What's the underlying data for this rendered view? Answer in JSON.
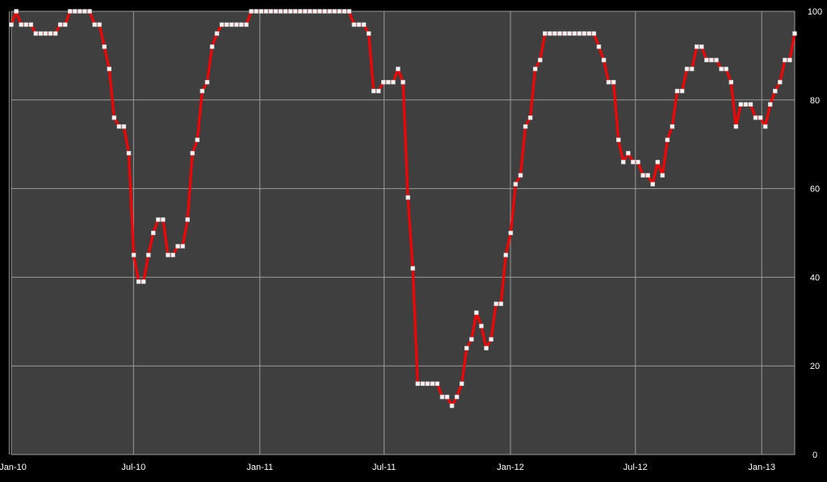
{
  "chart_data": {
    "type": "line",
    "title": "",
    "xlabel": "",
    "ylabel": "",
    "ylim": [
      0,
      100
    ],
    "yticks": [
      "0",
      "20",
      "40",
      "60",
      "80",
      "100"
    ],
    "y_axis_side": "right",
    "xticks": [
      "Jan-10",
      "Jul-10",
      "Jan-11",
      "Jul-11",
      "Jan-12",
      "Jul-12",
      "Jan-13"
    ],
    "x_start": "2010-01-04",
    "x_end": "2013-02-18",
    "grid": true,
    "colors": {
      "plot_bg": "#3f3f3f",
      "outer_bg": "#000000",
      "grid": "#9a9a9a",
      "line": "#ff0000",
      "marker": "#f2f2f2",
      "text": "#ffffff"
    },
    "series": [
      {
        "values": [
          97,
          100,
          97,
          97,
          97,
          95,
          95,
          95,
          95,
          95,
          97,
          97,
          100,
          100,
          100,
          100,
          100,
          97,
          97,
          92,
          87,
          76,
          74,
          74,
          68,
          45,
          39,
          39,
          45,
          50,
          53,
          53,
          45,
          45,
          47,
          47,
          53,
          68,
          71,
          82,
          84,
          92,
          95,
          97,
          97,
          97,
          97,
          97,
          97,
          100,
          100,
          100,
          100,
          100,
          100,
          100,
          100,
          100,
          100,
          100,
          100,
          100,
          100,
          100,
          100,
          100,
          100,
          100,
          100,
          100,
          97,
          97,
          97,
          95,
          82,
          82,
          84,
          84,
          84,
          87,
          84,
          58,
          42,
          16,
          16,
          16,
          16,
          16,
          13,
          13,
          11,
          13,
          16,
          24,
          26,
          32,
          29,
          24,
          26,
          34,
          34,
          45,
          50,
          61,
          63,
          74,
          76,
          87,
          89,
          95,
          95,
          95,
          95,
          95,
          95,
          95,
          95,
          95,
          95,
          95,
          92,
          89,
          84,
          84,
          71,
          66,
          68,
          66,
          66,
          63,
          63,
          61,
          66,
          63,
          71,
          74,
          82,
          82,
          87,
          87,
          92,
          92,
          89,
          89,
          89,
          87,
          87,
          84,
          74,
          79,
          79,
          79,
          76,
          76,
          74,
          79,
          82,
          84,
          89,
          89,
          95
        ]
      }
    ]
  }
}
